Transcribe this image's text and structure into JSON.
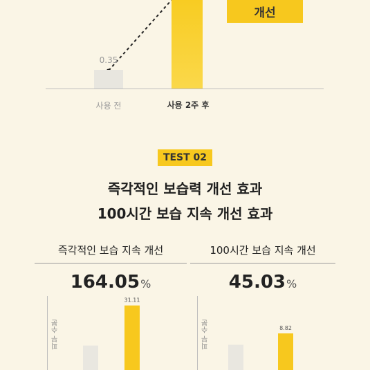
{
  "top_chart": {
    "badge_text": "개선",
    "before_value_label": "0.35",
    "categories": [
      "사용 전",
      "사용 2주 후"
    ],
    "colors": {
      "before": "#e9e7e0",
      "after": "#f7c81e",
      "accent": "#f7c81e"
    }
  },
  "test2": {
    "badge": "TEST 02",
    "heading_line1": "즉각적인 보습력 개선 효과",
    "heading_line2": "100시간 보습 지속 개선 효과"
  },
  "chart_data": [
    {
      "type": "bar",
      "title": "",
      "categories": [
        "사용 전",
        "사용 2주 후"
      ],
      "values": [
        0.35,
        null
      ],
      "value_labels": [
        "0.35",
        ""
      ]
    },
    {
      "type": "bar",
      "title": "즉각적인 보습 지속 개선",
      "headline": "164.05",
      "headline_unit": "%",
      "ylabel": "피부 수분",
      "values": [
        11.78,
        31.11
      ],
      "value_labels": [
        "",
        "31.11"
      ]
    },
    {
      "type": "bar",
      "title": "100시간 보습 지속 개선",
      "headline": "45.03",
      "headline_unit": "%",
      "ylabel": "피부 수분",
      "values": [
        6.08,
        8.82
      ],
      "value_labels": [
        "",
        "8.82"
      ]
    }
  ]
}
